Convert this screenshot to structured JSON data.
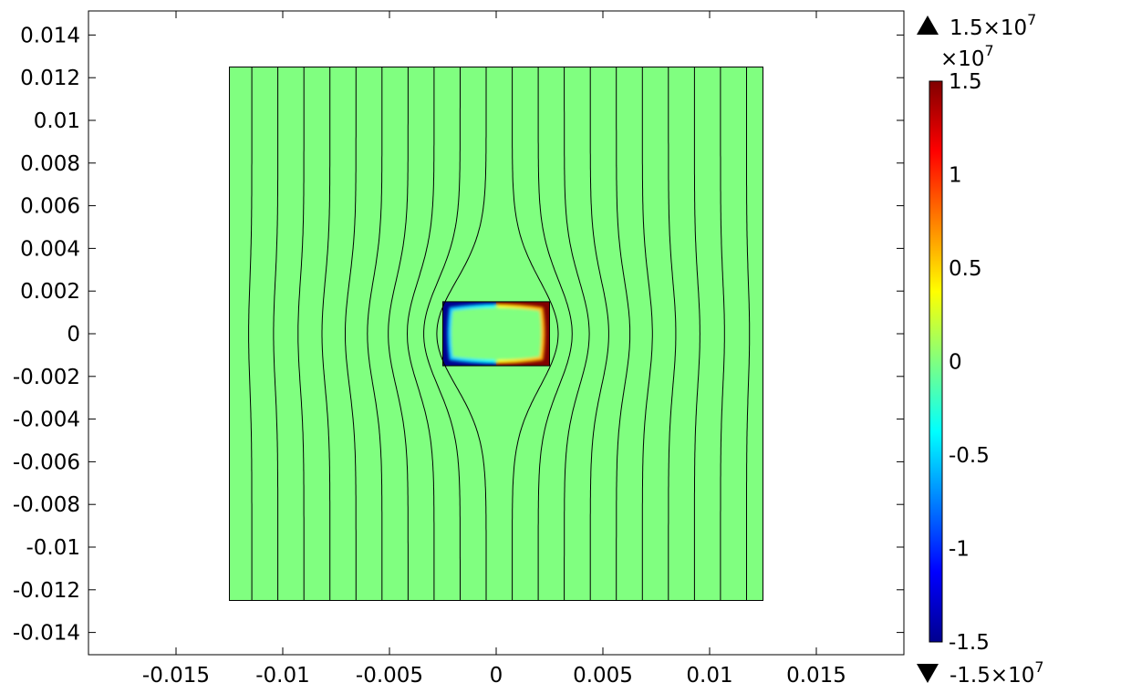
{
  "chart_data": {
    "type": "heatmap",
    "xlim": [
      -0.0191,
      0.0191
    ],
    "ylim": [
      -0.015,
      0.0151
    ],
    "xticks": [
      "-0.015",
      "-0.01",
      "-0.005",
      "0",
      "0.005",
      "0.01",
      "0.015"
    ],
    "xtick_values": [
      -0.015,
      -0.01,
      -0.005,
      0,
      0.005,
      0.01,
      0.015
    ],
    "yticks": [
      "0.014",
      "0.012",
      "0.01",
      "0.008",
      "0.006",
      "0.004",
      "0.002",
      "0",
      "-0.002",
      "-0.004",
      "-0.006",
      "-0.008",
      "-0.01",
      "-0.012",
      "-0.014"
    ],
    "ytick_values": [
      0.014,
      0.012,
      0.01,
      0.008,
      0.006,
      0.004,
      0.002,
      0,
      -0.002,
      -0.004,
      -0.006,
      -0.008,
      -0.01,
      -0.012,
      -0.014
    ],
    "outer_domain": {
      "x": [
        -0.0125,
        0.0125
      ],
      "y": [
        -0.0125,
        0.0125
      ],
      "color": "#80ff80"
    },
    "inner_domain": {
      "x": [
        -0.0025,
        0.0025
      ],
      "y": [
        -0.0015,
        0.0015
      ],
      "left_color": "#00008f",
      "right_color": "#800000"
    },
    "streamline_start_x": [
      -0.01145,
      -0.01023,
      -0.00901,
      -0.00779,
      -0.00657,
      -0.00535,
      -0.00413,
      -0.00291,
      -0.00169,
      -0.00047,
      0.00075,
      0.00197,
      0.00319,
      0.00441,
      0.00563,
      0.00685,
      0.00807,
      0.00929,
      0.01051,
      0.01173
    ],
    "colorbar": {
      "colormap": "jet",
      "range": [
        -1.5,
        1.5
      ],
      "multiplier": "×10",
      "multiplier_exp": "7",
      "tick_labels": [
        "1.5",
        "1",
        "0.5",
        "0",
        "-0.5",
        "-1",
        "-1.5"
      ],
      "tick_values": [
        1.5,
        1,
        0.5,
        0,
        -0.5,
        -1,
        -1.5
      ],
      "max_label": "1.5×10",
      "max_exp": "7",
      "min_label": "-1.5×10",
      "min_exp": "7"
    },
    "grid": false
  }
}
